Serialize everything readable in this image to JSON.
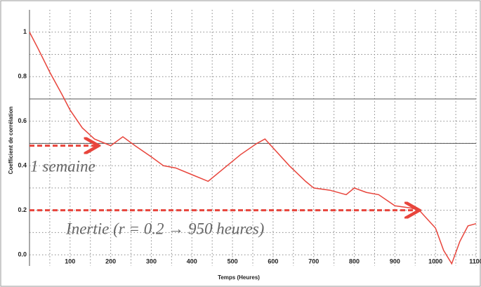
{
  "chart_data": {
    "type": "line",
    "x_label": "Temps (Heures)",
    "y_label": "Coefficient de corrélation",
    "x": [
      0,
      20,
      50,
      80,
      100,
      130,
      160,
      200,
      230,
      260,
      300,
      330,
      360,
      400,
      440,
      480,
      520,
      560,
      580,
      600,
      640,
      680,
      700,
      740,
      780,
      800,
      830,
      860,
      900,
      940,
      960,
      1000,
      1020,
      1040,
      1060,
      1080,
      1100
    ],
    "series": [
      {
        "color": "#e8453c",
        "values": [
          1.0,
          0.93,
          0.82,
          0.72,
          0.65,
          0.57,
          0.52,
          0.49,
          0.53,
          0.49,
          0.44,
          0.4,
          0.39,
          0.36,
          0.33,
          0.39,
          0.45,
          0.5,
          0.52,
          0.48,
          0.4,
          0.33,
          0.3,
          0.29,
          0.27,
          0.3,
          0.28,
          0.27,
          0.22,
          0.21,
          0.2,
          0.12,
          0.02,
          -0.04,
          0.06,
          0.13,
          0.14
        ]
      }
    ],
    "xlim": [
      0,
      1100
    ],
    "ylim": [
      -0.05,
      1.1
    ],
    "xticks": [
      100,
      200,
      300,
      400,
      500,
      600,
      700,
      800,
      900,
      1000,
      1100
    ],
    "yticks": [
      {
        "value": 0,
        "label": "0.0"
      },
      0.2,
      0.4,
      0.6,
      0.8,
      1
    ],
    "xminor_ticks": [
      50,
      150,
      250,
      350,
      450,
      550,
      650,
      750,
      850,
      950,
      1050
    ],
    "yminor_ticks": [
      0.1,
      0.3,
      0.5,
      0.7,
      0.9
    ],
    "hlines": [
      0.7,
      0.5
    ],
    "grid": true,
    "reference_arrows": [
      {
        "y": 0.49,
        "x_end": 165,
        "color": "#e8453c"
      },
      {
        "y": 0.2,
        "x_end": 955,
        "color": "#e8453c"
      }
    ],
    "annotations": [
      {
        "text": "1 semaine",
        "x": 2,
        "y": 0.39
      },
      {
        "text": "Inertie (r = 0.2 → 950 heures)",
        "x": 90,
        "y": 0.11
      }
    ]
  }
}
